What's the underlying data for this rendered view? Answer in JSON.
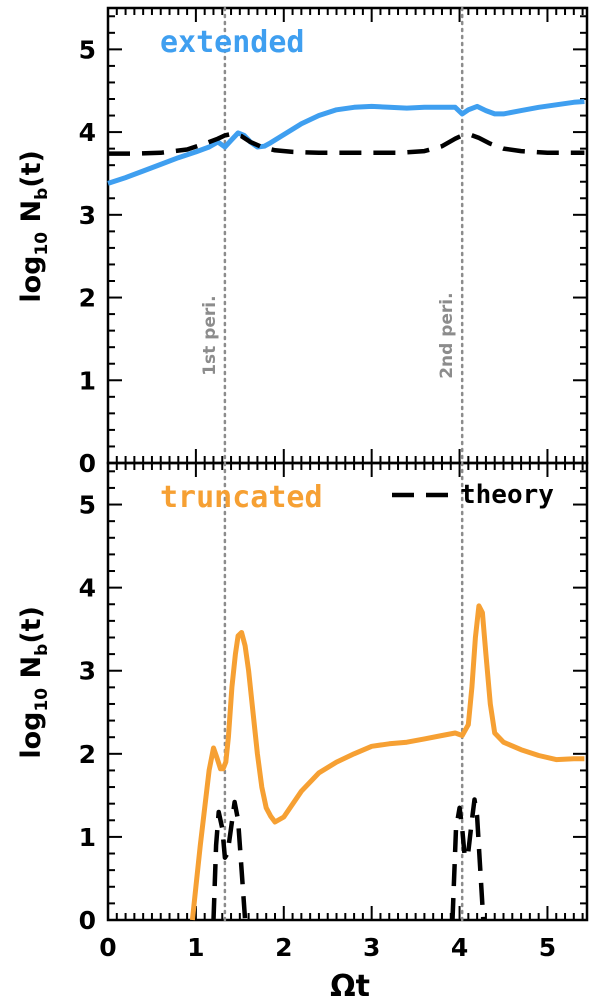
{
  "chart_data": [
    {
      "type": "line",
      "panel": "top",
      "title": "extended",
      "title_color": "#3f9ff0",
      "xlabel": "",
      "ylabel_main": "log",
      "ylabel_sub": "10",
      "ylabel_tail": " N",
      "ylabel_sub2": "b",
      "ylabel_end": "(t)",
      "xlim": [
        0,
        5.45
      ],
      "ylim": [
        0,
        5.5
      ],
      "xticks": [
        "0",
        "1",
        "2",
        "3",
        "4",
        "5"
      ],
      "yticks": [
        "0",
        "1",
        "2",
        "3",
        "4",
        "5"
      ],
      "pericenters": [
        {
          "x": 1.33,
          "label": "1st peri."
        },
        {
          "x": 4.03,
          "label": "2nd peri."
        }
      ],
      "series": [
        {
          "color": "#3f9ff0",
          "dash": "solid",
          "x": [
            0.0,
            0.2,
            0.4,
            0.6,
            0.8,
            1.0,
            1.15,
            1.25,
            1.33,
            1.4,
            1.48,
            1.55,
            1.62,
            1.7,
            1.78,
            1.85,
            2.0,
            2.2,
            2.4,
            2.6,
            2.8,
            3.0,
            3.2,
            3.4,
            3.6,
            3.8,
            3.95,
            4.03,
            4.1,
            4.2,
            4.3,
            4.4,
            4.5,
            4.7,
            4.9,
            5.1,
            5.3,
            5.42
          ],
          "y": [
            3.38,
            3.45,
            3.53,
            3.61,
            3.69,
            3.76,
            3.82,
            3.88,
            3.82,
            3.9,
            3.99,
            3.96,
            3.88,
            3.82,
            3.83,
            3.87,
            3.97,
            4.1,
            4.2,
            4.27,
            4.3,
            4.31,
            4.3,
            4.29,
            4.3,
            4.3,
            4.3,
            4.22,
            4.27,
            4.31,
            4.26,
            4.22,
            4.22,
            4.26,
            4.3,
            4.33,
            4.36,
            4.37
          ]
        },
        {
          "name": "theory",
          "color": "#000000",
          "dash": "dashed",
          "x": [
            0.0,
            0.3,
            0.6,
            0.9,
            1.1,
            1.25,
            1.33,
            1.42,
            1.52,
            1.62,
            1.75,
            1.9,
            2.1,
            2.4,
            2.7,
            3.0,
            3.3,
            3.6,
            3.8,
            3.95,
            4.03,
            4.12,
            4.22,
            4.35,
            4.5,
            4.7,
            5.0,
            5.3,
            5.42
          ],
          "y": [
            3.74,
            3.74,
            3.75,
            3.79,
            3.86,
            3.92,
            3.96,
            3.98,
            3.95,
            3.88,
            3.82,
            3.78,
            3.76,
            3.75,
            3.75,
            3.75,
            3.75,
            3.77,
            3.83,
            3.92,
            3.96,
            3.97,
            3.93,
            3.86,
            3.8,
            3.77,
            3.75,
            3.75,
            3.75
          ]
        }
      ]
    },
    {
      "type": "line",
      "panel": "bottom",
      "title": "truncated",
      "title_color": "#f6a033",
      "legend": {
        "label": "theory",
        "position": "top-right"
      },
      "xlabel": "Ωt",
      "ylabel_main": "log",
      "ylabel_sub": "10",
      "ylabel_tail": " N",
      "ylabel_sub2": "b",
      "ylabel_end": "(t)",
      "xlim": [
        0,
        5.45
      ],
      "ylim": [
        0,
        5.5
      ],
      "xticks": [
        "0",
        "1",
        "2",
        "3",
        "4",
        "5"
      ],
      "yticks": [
        "0",
        "1",
        "2",
        "3",
        "4",
        "5"
      ],
      "pericenters": [
        {
          "x": 1.33,
          "label": ""
        },
        {
          "x": 4.03,
          "label": ""
        }
      ],
      "series": [
        {
          "color": "#f6a033",
          "dash": "solid",
          "x": [
            0.96,
            1.0,
            1.05,
            1.1,
            1.15,
            1.2,
            1.24,
            1.28,
            1.31,
            1.34,
            1.37,
            1.41,
            1.45,
            1.48,
            1.52,
            1.56,
            1.6,
            1.65,
            1.7,
            1.75,
            1.8,
            1.85,
            1.9,
            2.0,
            2.2,
            2.4,
            2.6,
            2.8,
            3.0,
            3.2,
            3.4,
            3.6,
            3.8,
            3.95,
            4.03,
            4.1,
            4.14,
            4.18,
            4.22,
            4.26,
            4.3,
            4.35,
            4.4,
            4.5,
            4.7,
            4.9,
            5.1,
            5.3,
            5.42
          ],
          "y": [
            0.0,
            0.4,
            0.9,
            1.35,
            1.8,
            2.07,
            1.95,
            1.82,
            1.82,
            1.9,
            2.2,
            2.8,
            3.2,
            3.42,
            3.46,
            3.3,
            3.0,
            2.5,
            2.0,
            1.6,
            1.35,
            1.25,
            1.18,
            1.24,
            1.55,
            1.77,
            1.9,
            2.0,
            2.09,
            2.12,
            2.14,
            2.18,
            2.22,
            2.25,
            2.22,
            2.35,
            2.8,
            3.4,
            3.78,
            3.7,
            3.2,
            2.6,
            2.25,
            2.14,
            2.05,
            1.98,
            1.93,
            1.94,
            1.94
          ]
        },
        {
          "name": "theory",
          "color": "#000000",
          "dash": "dashed",
          "x": [
            1.2,
            1.23,
            1.26,
            1.3,
            1.33,
            1.36,
            1.4,
            1.44,
            1.48,
            1.52,
            1.56
          ],
          "y": [
            0.0,
            0.9,
            1.3,
            1.1,
            0.75,
            0.8,
            1.1,
            1.42,
            1.2,
            0.6,
            0.0
          ]
        },
        {
          "name": "theory",
          "color": "#000000",
          "dash": "dashed",
          "x": [
            3.92,
            3.96,
            4.0,
            4.03,
            4.06,
            4.1,
            4.14,
            4.17,
            4.2,
            4.23,
            4.27
          ],
          "y": [
            0.0,
            1.1,
            1.35,
            1.1,
            0.75,
            0.82,
            1.2,
            1.45,
            1.25,
            0.7,
            0.0
          ]
        }
      ]
    }
  ]
}
